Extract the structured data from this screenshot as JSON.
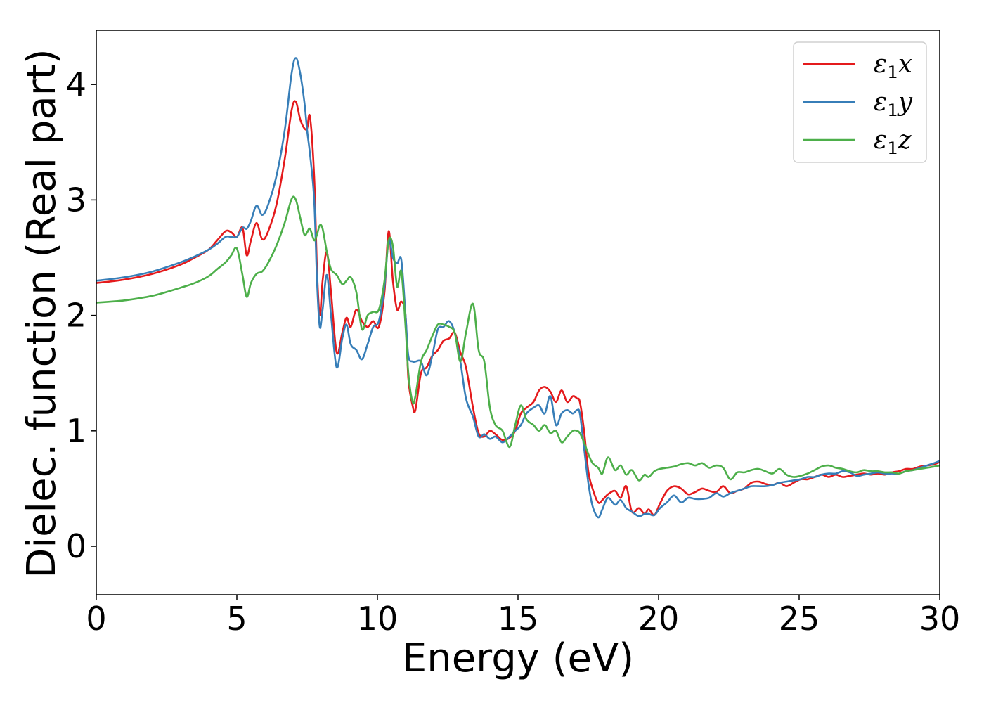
{
  "colors": {
    "x": "#e41a1c",
    "y": "#377eb8",
    "z": "#4daf4a"
  },
  "chart_data": {
    "type": "line",
    "title": "",
    "xlabel": "Energy (eV)",
    "ylabel": "Dielec. function (Real part)",
    "xlim": [
      0,
      30
    ],
    "ylim": [
      -0.42,
      4.47
    ],
    "xticks": [
      0,
      5,
      10,
      15,
      20,
      25,
      30
    ],
    "xtick_labels": [
      "0",
      "5",
      "10",
      "15",
      "20",
      "25",
      "30"
    ],
    "yticks": [
      0,
      1,
      2,
      3,
      4
    ],
    "ytick_labels": [
      "0",
      "1",
      "2",
      "3",
      "4"
    ],
    "grid": false,
    "legend_position": "top-right",
    "series": [
      {
        "name": "ε1x",
        "legend_symbol": "ε",
        "legend_sub": "1",
        "legend_var": "x",
        "color_key": "x",
        "x": [
          0,
          1,
          2,
          3,
          3.5,
          4,
          4.3,
          4.6,
          4.8,
          5,
          5.2,
          5.35,
          5.5,
          5.7,
          5.9,
          6.1,
          6.4,
          6.7,
          6.95,
          7.1,
          7.25,
          7.4,
          7.5,
          7.6,
          7.75,
          7.85,
          7.95,
          8.05,
          8.2,
          8.35,
          8.55,
          8.75,
          8.9,
          9.05,
          9.25,
          9.45,
          9.65,
          9.85,
          10.05,
          10.25,
          10.4,
          10.55,
          10.7,
          10.85,
          11.0,
          11.1,
          11.25,
          11.35,
          11.55,
          11.75,
          11.95,
          12.15,
          12.35,
          12.55,
          12.75,
          12.95,
          13.15,
          13.4,
          13.6,
          13.8,
          14.0,
          14.2,
          14.45,
          14.7,
          14.9,
          15.1,
          15.3,
          15.55,
          15.75,
          15.95,
          16.15,
          16.35,
          16.55,
          16.75,
          16.95,
          17.1,
          17.2,
          17.35,
          17.5,
          17.65,
          17.85,
          18.0,
          18.2,
          18.45,
          18.65,
          18.85,
          19.05,
          19.3,
          19.5,
          19.65,
          19.85,
          20.05,
          20.3,
          20.55,
          20.8,
          21.05,
          21.3,
          21.55,
          21.8,
          22.05,
          22.3,
          22.55,
          22.8,
          23.05,
          23.3,
          23.55,
          23.8,
          24.05,
          24.3,
          24.55,
          24.8,
          25.05,
          25.3,
          25.55,
          25.8,
          26.05,
          26.3,
          26.55,
          26.8,
          27.05,
          27.3,
          27.55,
          27.8,
          28.05,
          28.3,
          28.55,
          28.8,
          29.05,
          29.3,
          29.55,
          29.8,
          30
        ],
        "y": [
          2.28,
          2.31,
          2.36,
          2.44,
          2.5,
          2.57,
          2.65,
          2.73,
          2.72,
          2.68,
          2.76,
          2.52,
          2.65,
          2.8,
          2.66,
          2.72,
          2.95,
          3.35,
          3.78,
          3.85,
          3.7,
          3.62,
          3.62,
          3.72,
          3.2,
          2.4,
          2.0,
          2.3,
          2.55,
          2.2,
          1.68,
          1.85,
          1.98,
          1.9,
          2.05,
          1.95,
          1.9,
          1.95,
          1.9,
          2.2,
          2.73,
          2.3,
          2.05,
          2.12,
          2.0,
          1.45,
          1.22,
          1.18,
          1.5,
          1.55,
          1.65,
          1.7,
          1.78,
          1.8,
          1.85,
          1.68,
          1.55,
          1.2,
          0.98,
          0.95,
          1.0,
          0.97,
          0.92,
          0.94,
          1.0,
          1.15,
          1.2,
          1.25,
          1.35,
          1.38,
          1.34,
          1.25,
          1.35,
          1.25,
          1.3,
          1.28,
          1.25,
          1.0,
          0.65,
          0.5,
          0.38,
          0.4,
          0.45,
          0.48,
          0.42,
          0.52,
          0.3,
          0.33,
          0.28,
          0.32,
          0.27,
          0.37,
          0.48,
          0.52,
          0.5,
          0.45,
          0.47,
          0.5,
          0.48,
          0.47,
          0.52,
          0.46,
          0.48,
          0.5,
          0.55,
          0.56,
          0.54,
          0.53,
          0.55,
          0.52,
          0.55,
          0.58,
          0.58,
          0.6,
          0.62,
          0.6,
          0.62,
          0.6,
          0.61,
          0.62,
          0.63,
          0.62,
          0.63,
          0.62,
          0.64,
          0.65,
          0.67,
          0.67,
          0.69,
          0.7,
          0.71,
          0.73
        ]
      },
      {
        "name": "ε1y",
        "legend_symbol": "ε",
        "legend_sub": "1",
        "legend_var": "y",
        "color_key": "y",
        "x": [
          0,
          1,
          2,
          3,
          3.5,
          4,
          4.3,
          4.6,
          4.8,
          5,
          5.2,
          5.35,
          5.5,
          5.7,
          5.9,
          6.1,
          6.4,
          6.7,
          6.95,
          7.1,
          7.25,
          7.4,
          7.5,
          7.6,
          7.75,
          7.85,
          7.95,
          8.05,
          8.2,
          8.35,
          8.55,
          8.75,
          8.9,
          9.05,
          9.25,
          9.45,
          9.65,
          9.85,
          10.05,
          10.25,
          10.4,
          10.55,
          10.7,
          10.85,
          11.0,
          11.1,
          11.25,
          11.35,
          11.55,
          11.75,
          11.95,
          12.15,
          12.35,
          12.55,
          12.75,
          12.95,
          13.15,
          13.4,
          13.6,
          13.8,
          14.0,
          14.2,
          14.45,
          14.7,
          14.9,
          15.1,
          15.3,
          15.55,
          15.75,
          15.95,
          16.15,
          16.35,
          16.55,
          16.75,
          16.95,
          17.1,
          17.2,
          17.35,
          17.5,
          17.65,
          17.85,
          18.0,
          18.2,
          18.45,
          18.65,
          18.85,
          19.05,
          19.3,
          19.5,
          19.65,
          19.85,
          20.05,
          20.3,
          20.55,
          20.8,
          21.05,
          21.3,
          21.55,
          21.8,
          22.05,
          22.3,
          22.55,
          22.8,
          23.05,
          23.3,
          23.55,
          23.8,
          24.05,
          24.3,
          24.55,
          24.8,
          25.05,
          25.3,
          25.55,
          25.8,
          26.05,
          26.3,
          26.55,
          26.8,
          27.05,
          27.3,
          27.55,
          27.8,
          28.05,
          28.3,
          28.55,
          28.8,
          29.05,
          29.3,
          29.55,
          29.8,
          30
        ],
        "y": [
          2.3,
          2.33,
          2.38,
          2.46,
          2.51,
          2.57,
          2.62,
          2.68,
          2.68,
          2.68,
          2.76,
          2.75,
          2.82,
          2.95,
          2.87,
          2.95,
          3.2,
          3.6,
          4.1,
          4.23,
          4.1,
          3.85,
          3.6,
          3.4,
          3.0,
          2.3,
          1.9,
          2.05,
          2.35,
          2.0,
          1.55,
          1.8,
          1.92,
          1.75,
          1.7,
          1.62,
          1.75,
          1.9,
          1.95,
          2.25,
          2.65,
          2.5,
          2.45,
          2.48,
          2.0,
          1.65,
          1.6,
          1.6,
          1.6,
          1.48,
          1.65,
          1.88,
          1.9,
          1.95,
          1.85,
          1.6,
          1.28,
          1.12,
          0.95,
          0.97,
          0.93,
          0.95,
          0.9,
          0.95,
          1.0,
          1.05,
          1.15,
          1.2,
          1.22,
          1.15,
          1.3,
          1.05,
          1.15,
          1.18,
          1.15,
          1.18,
          1.15,
          0.85,
          0.55,
          0.35,
          0.25,
          0.32,
          0.42,
          0.36,
          0.4,
          0.33,
          0.3,
          0.26,
          0.28,
          0.28,
          0.27,
          0.33,
          0.38,
          0.44,
          0.38,
          0.42,
          0.41,
          0.41,
          0.42,
          0.46,
          0.43,
          0.46,
          0.48,
          0.5,
          0.52,
          0.52,
          0.52,
          0.53,
          0.55,
          0.56,
          0.57,
          0.58,
          0.6,
          0.6,
          0.62,
          0.63,
          0.63,
          0.65,
          0.64,
          0.61,
          0.62,
          0.63,
          0.64,
          0.63,
          0.63,
          0.63,
          0.65,
          0.66,
          0.68,
          0.7,
          0.72,
          0.74
        ]
      },
      {
        "name": "ε1z",
        "legend_symbol": "ε",
        "legend_sub": "1",
        "legend_var": "z",
        "color_key": "z",
        "x": [
          0,
          1,
          2,
          3,
          3.5,
          4,
          4.3,
          4.6,
          4.8,
          5,
          5.2,
          5.35,
          5.5,
          5.7,
          5.9,
          6.1,
          6.4,
          6.7,
          6.95,
          7.1,
          7.25,
          7.4,
          7.5,
          7.6,
          7.75,
          7.85,
          7.95,
          8.05,
          8.2,
          8.35,
          8.55,
          8.75,
          8.9,
          9.05,
          9.25,
          9.45,
          9.65,
          9.85,
          10.05,
          10.25,
          10.4,
          10.55,
          10.7,
          10.85,
          11.0,
          11.1,
          11.25,
          11.35,
          11.55,
          11.75,
          11.95,
          12.15,
          12.35,
          12.55,
          12.75,
          12.95,
          13.15,
          13.4,
          13.6,
          13.8,
          14.0,
          14.2,
          14.45,
          14.7,
          14.9,
          15.1,
          15.3,
          15.55,
          15.75,
          15.95,
          16.15,
          16.35,
          16.55,
          16.75,
          16.95,
          17.1,
          17.2,
          17.35,
          17.5,
          17.65,
          17.85,
          18.0,
          18.2,
          18.45,
          18.65,
          18.85,
          19.05,
          19.3,
          19.5,
          19.65,
          19.85,
          20.05,
          20.3,
          20.55,
          20.8,
          21.05,
          21.3,
          21.55,
          21.8,
          22.05,
          22.3,
          22.55,
          22.8,
          23.05,
          23.3,
          23.55,
          23.8,
          24.05,
          24.3,
          24.55,
          24.8,
          25.05,
          25.3,
          25.55,
          25.8,
          26.05,
          26.3,
          26.55,
          26.8,
          27.05,
          27.3,
          27.55,
          27.8,
          28.05,
          28.3,
          28.55,
          28.8,
          29.05,
          29.3,
          29.55,
          29.8,
          30
        ],
        "y": [
          2.11,
          2.13,
          2.17,
          2.24,
          2.28,
          2.34,
          2.4,
          2.46,
          2.52,
          2.58,
          2.35,
          2.16,
          2.28,
          2.36,
          2.38,
          2.45,
          2.6,
          2.8,
          3.01,
          3.0,
          2.85,
          2.7,
          2.72,
          2.75,
          2.65,
          2.7,
          2.78,
          2.75,
          2.55,
          2.4,
          2.35,
          2.27,
          2.3,
          2.33,
          2.2,
          1.88,
          2.0,
          2.03,
          2.05,
          2.3,
          2.65,
          2.6,
          2.25,
          2.38,
          1.9,
          1.5,
          1.25,
          1.3,
          1.6,
          1.7,
          1.82,
          1.92,
          1.92,
          1.9,
          1.85,
          1.6,
          1.85,
          2.1,
          1.7,
          1.6,
          1.2,
          1.05,
          1.0,
          0.86,
          1.05,
          1.22,
          1.1,
          1.05,
          1.0,
          1.05,
          0.98,
          1.0,
          0.9,
          0.95,
          1.0,
          1.0,
          0.98,
          0.9,
          0.8,
          0.72,
          0.68,
          0.63,
          0.77,
          0.66,
          0.7,
          0.62,
          0.66,
          0.57,
          0.62,
          0.6,
          0.65,
          0.67,
          0.68,
          0.69,
          0.71,
          0.72,
          0.7,
          0.72,
          0.68,
          0.7,
          0.68,
          0.58,
          0.64,
          0.64,
          0.66,
          0.67,
          0.65,
          0.63,
          0.67,
          0.62,
          0.6,
          0.61,
          0.63,
          0.66,
          0.69,
          0.7,
          0.68,
          0.67,
          0.65,
          0.64,
          0.66,
          0.65,
          0.65,
          0.64,
          0.64,
          0.63,
          0.65,
          0.66,
          0.67,
          0.68,
          0.69,
          0.7
        ]
      }
    ]
  }
}
